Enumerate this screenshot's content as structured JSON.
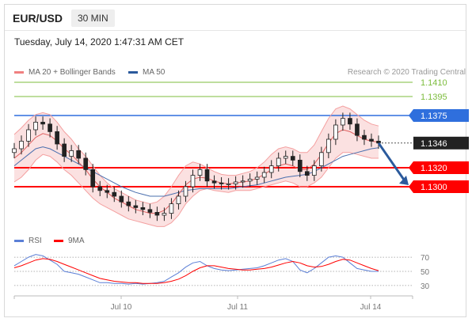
{
  "header": {
    "symbol": "EUR/USD",
    "timeframe": "30 MIN",
    "datetime": "Tuesday, July 14, 2020 1:47:31 AM CET"
  },
  "legend_main": [
    {
      "label": "MA 20 + Bollinger Bands",
      "color": "#f08080"
    },
    {
      "label": "MA 50",
      "color": "#2b5a9c"
    }
  ],
  "legend_rsi": [
    {
      "label": "RSI",
      "color": "#5b7fd6"
    },
    {
      "label": "9MA",
      "color": "#ff0000"
    }
  ],
  "credit": "Research © 2020 Trading Central",
  "chart_data": [
    {
      "type": "line",
      "title": "",
      "xlabel": "",
      "ylabel": "",
      "x_ticks": [
        "Jul 10",
        "Jul 11",
        "Jul 14"
      ],
      "grid": false,
      "price_levels": [
        {
          "label": "1.1410",
          "value": 1.141,
          "style": "green-line",
          "color": "#7cbc3c"
        },
        {
          "label": "1.1395",
          "value": 1.1395,
          "style": "green-line",
          "color": "#7cbc3c"
        },
        {
          "label": "1.1375",
          "value": 1.1375,
          "style": "blue-line",
          "color": "#2f6fdd"
        },
        {
          "label": "1.1346",
          "value": 1.1346,
          "style": "current-price",
          "color": "#222222"
        },
        {
          "label": "1.1320",
          "value": 1.132,
          "style": "red-line",
          "color": "#ff0000"
        },
        {
          "label": "1.1300",
          "value": 1.13,
          "style": "red-line",
          "color": "#ff0000"
        }
      ],
      "price_close": [
        1.134,
        1.1348,
        1.136,
        1.1368,
        1.1366,
        1.1358,
        1.1345,
        1.1332,
        1.1338,
        1.133,
        1.1318,
        1.13,
        1.1296,
        1.1294,
        1.129,
        1.1284,
        1.128,
        1.1278,
        1.1276,
        1.1273,
        1.127,
        1.1272,
        1.1282,
        1.129,
        1.13,
        1.1312,
        1.1318,
        1.1306,
        1.1304,
        1.1303,
        1.1303,
        1.1305,
        1.1306,
        1.1308,
        1.131,
        1.1315,
        1.1322,
        1.133,
        1.1332,
        1.1328,
        1.1316,
        1.1312,
        1.1322,
        1.1336,
        1.135,
        1.1365,
        1.1372,
        1.1366,
        1.1354,
        1.135,
        1.1348,
        1.1346
      ],
      "ma20": [
        1.133,
        1.1336,
        1.1344,
        1.1352,
        1.1356,
        1.1354,
        1.1348,
        1.134,
        1.1334,
        1.1326,
        1.1318,
        1.1308,
        1.13,
        1.1294,
        1.1288,
        1.1284,
        1.128,
        1.1276,
        1.1274,
        1.1272,
        1.1272,
        1.1275,
        1.1282,
        1.1292,
        1.1302,
        1.1308,
        1.131,
        1.1309,
        1.1306,
        1.1304,
        1.1303,
        1.1304,
        1.1305,
        1.1306,
        1.1309,
        1.1313,
        1.1318,
        1.1322,
        1.1324,
        1.1322,
        1.1318,
        1.1318,
        1.1324,
        1.1334,
        1.1346,
        1.1356,
        1.136,
        1.1358,
        1.1354,
        1.135,
        1.1348,
        1.1347
      ],
      "ma50": [
        1.1322,
        1.1328,
        1.1334,
        1.134,
        1.1342,
        1.134,
        1.1336,
        1.1332,
        1.1328,
        1.1324,
        1.132,
        1.1316,
        1.1312,
        1.1308,
        1.1304,
        1.13,
        1.1297,
        1.1294,
        1.1292,
        1.129,
        1.129,
        1.129,
        1.1292,
        1.1294,
        1.1296,
        1.1297,
        1.1298,
        1.1298,
        1.1298,
        1.1298,
        1.1298,
        1.1299,
        1.13,
        1.1301,
        1.1302,
        1.1304,
        1.1306,
        1.1308,
        1.131,
        1.1311,
        1.1312,
        1.1313,
        1.1316,
        1.132,
        1.1324,
        1.1328,
        1.1332,
        1.1334,
        1.1336,
        1.1338,
        1.134,
        1.1341
      ],
      "bb_upper": [
        1.1355,
        1.1362,
        1.137,
        1.1376,
        1.1378,
        1.1376,
        1.1368,
        1.1358,
        1.135,
        1.134,
        1.1332,
        1.1322,
        1.1312,
        1.1304,
        1.1298,
        1.1294,
        1.129,
        1.1286,
        1.1284,
        1.1282,
        1.1284,
        1.129,
        1.13,
        1.1312,
        1.1322,
        1.1326,
        1.1324,
        1.132,
        1.1316,
        1.1313,
        1.1312,
        1.1312,
        1.1314,
        1.1316,
        1.132,
        1.1326,
        1.1334,
        1.134,
        1.1342,
        1.134,
        1.1336,
        1.1336,
        1.1344,
        1.1358,
        1.1372,
        1.1382,
        1.1385,
        1.1382,
        1.1376,
        1.137,
        1.1366,
        1.1364
      ],
      "bb_lower": [
        1.1305,
        1.131,
        1.1318,
        1.1328,
        1.1334,
        1.1332,
        1.1326,
        1.1318,
        1.1312,
        1.1304,
        1.1296,
        1.1288,
        1.1282,
        1.1278,
        1.1274,
        1.127,
        1.1266,
        1.1264,
        1.1262,
        1.126,
        1.1258,
        1.1258,
        1.1262,
        1.127,
        1.1282,
        1.129,
        1.1296,
        1.1298,
        1.1296,
        1.1295,
        1.1294,
        1.1296,
        1.1296,
        1.1296,
        1.1298,
        1.13,
        1.1302,
        1.1304,
        1.1306,
        1.1304,
        1.13,
        1.13,
        1.1304,
        1.131,
        1.132,
        1.133,
        1.1336,
        1.1336,
        1.1334,
        1.1332,
        1.133,
        1.133
      ],
      "forecast_arrow": {
        "from": 1.1346,
        "to": 1.13,
        "color": "#2b5a9c"
      },
      "ylim": [
        1.1255,
        1.142
      ]
    },
    {
      "type": "line",
      "title": "",
      "y_ticks": [
        "70",
        "50",
        "30"
      ],
      "ylim": [
        22,
        78
      ],
      "series": [
        {
          "name": "RSI",
          "values": [
            58,
            64,
            70,
            74,
            72,
            66,
            60,
            50,
            48,
            46,
            42,
            38,
            34,
            34,
            33,
            33,
            32,
            33,
            32,
            33,
            34,
            36,
            42,
            48,
            56,
            62,
            64,
            58,
            54,
            52,
            51,
            52,
            53,
            54,
            55,
            58,
            62,
            66,
            68,
            64,
            52,
            48,
            54,
            62,
            70,
            72,
            70,
            62,
            54,
            52,
            50,
            50
          ]
        },
        {
          "name": "9MA",
          "values": [
            55,
            58,
            62,
            66,
            68,
            67,
            64,
            60,
            56,
            52,
            48,
            44,
            40,
            38,
            36,
            35,
            34,
            34,
            33,
            33,
            33,
            34,
            36,
            39,
            44,
            50,
            55,
            58,
            58,
            56,
            54,
            53,
            52,
            52,
            53,
            54,
            56,
            59,
            62,
            64,
            62,
            58,
            56,
            57,
            60,
            64,
            67,
            66,
            62,
            58,
            54,
            51
          ]
        }
      ]
    }
  ]
}
